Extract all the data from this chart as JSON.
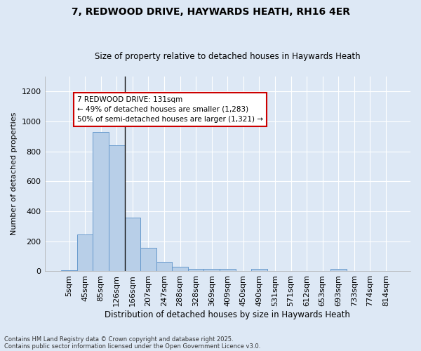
{
  "title1": "7, REDWOOD DRIVE, HAYWARDS HEATH, RH16 4ER",
  "title2": "Size of property relative to detached houses in Haywards Heath",
  "xlabel": "Distribution of detached houses by size in Haywards Heath",
  "ylabel": "Number of detached properties",
  "categories": [
    "5sqm",
    "45sqm",
    "85sqm",
    "126sqm",
    "166sqm",
    "207sqm",
    "247sqm",
    "288sqm",
    "328sqm",
    "369sqm",
    "409sqm",
    "450sqm",
    "490sqm",
    "531sqm",
    "571sqm",
    "612sqm",
    "653sqm",
    "693sqm",
    "733sqm",
    "774sqm",
    "814sqm"
  ],
  "values": [
    5,
    245,
    930,
    840,
    360,
    155,
    65,
    30,
    15,
    15,
    15,
    0,
    15,
    0,
    0,
    0,
    0,
    15,
    0,
    0,
    0
  ],
  "bar_color": "#b8cfe8",
  "bar_edge_color": "#6699cc",
  "background_color": "#dde8f5",
  "grid_color": "#ffffff",
  "vline_color": "#111111",
  "annotation_text": "7 REDWOOD DRIVE: 131sqm\n← 49% of detached houses are smaller (1,283)\n50% of semi-detached houses are larger (1,321) →",
  "annotation_box_color": "#ffffff",
  "annotation_edge_color": "#cc0000",
  "footer1": "Contains HM Land Registry data © Crown copyright and database right 2025.",
  "footer2": "Contains public sector information licensed under the Open Government Licence v3.0.",
  "ylim": [
    0,
    1300
  ],
  "yticks": [
    0,
    200,
    400,
    600,
    800,
    1000,
    1200
  ]
}
